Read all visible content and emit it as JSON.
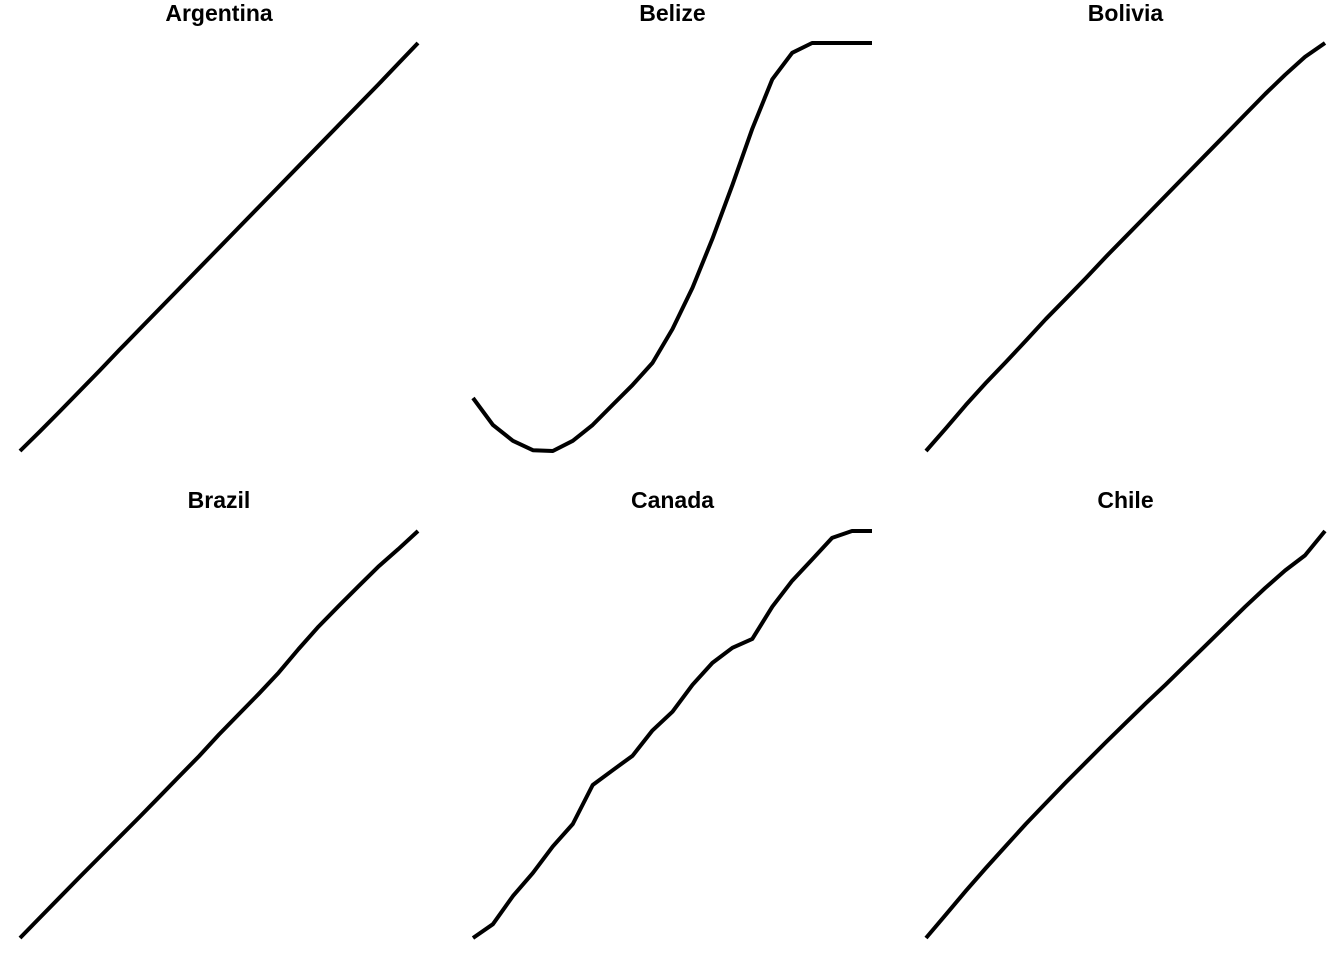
{
  "chart_data": [
    {
      "type": "line",
      "title": "Argentina",
      "axes_visible": false,
      "grid": false,
      "legend": "none",
      "color": "#000000",
      "x": [
        0,
        1,
        2,
        3,
        4,
        5,
        6,
        7,
        8,
        9,
        10,
        11,
        12,
        13,
        14,
        15,
        16,
        17,
        18,
        19,
        20
      ],
      "y": [
        0.0,
        0.048,
        0.097,
        0.147,
        0.197,
        0.248,
        0.298,
        0.348,
        0.398,
        0.448,
        0.498,
        0.548,
        0.598,
        0.648,
        0.698,
        0.748,
        0.798,
        0.848,
        0.898,
        0.949,
        1.0
      ]
    },
    {
      "type": "line",
      "title": "Belize",
      "axes_visible": false,
      "grid": false,
      "legend": "none",
      "color": "#000000",
      "x": [
        0,
        1,
        2,
        3,
        4,
        5,
        6,
        7,
        8,
        9,
        10,
        11,
        12,
        13,
        14,
        15,
        16,
        17,
        18,
        19,
        20
      ],
      "y": [
        0.13,
        0.064,
        0.025,
        0.002,
        0.0,
        0.025,
        0.064,
        0.113,
        0.162,
        0.216,
        0.299,
        0.4,
        0.52,
        0.652,
        0.79,
        0.911,
        0.976,
        1.0,
        1.0,
        1.0,
        1.0
      ]
    },
    {
      "type": "line",
      "title": "Bolivia",
      "axes_visible": false,
      "grid": false,
      "legend": "none",
      "color": "#000000",
      "x": [
        0,
        1,
        2,
        3,
        4,
        5,
        6,
        7,
        8,
        9,
        10,
        11,
        12,
        13,
        14,
        15,
        16,
        17,
        18,
        19,
        20
      ],
      "y": [
        0.0,
        0.056,
        0.113,
        0.167,
        0.218,
        0.27,
        0.323,
        0.373,
        0.423,
        0.475,
        0.525,
        0.575,
        0.625,
        0.675,
        0.725,
        0.775,
        0.825,
        0.875,
        0.922,
        0.966,
        1.0
      ]
    },
    {
      "type": "line",
      "title": "Brazil",
      "axes_visible": false,
      "grid": false,
      "legend": "none",
      "color": "#000000",
      "x": [
        0,
        1,
        2,
        3,
        4,
        5,
        6,
        7,
        8,
        9,
        10,
        11,
        12,
        13,
        14,
        15,
        16,
        17,
        18,
        19,
        20
      ],
      "y": [
        0.0,
        0.05,
        0.1,
        0.15,
        0.199,
        0.248,
        0.297,
        0.347,
        0.397,
        0.447,
        0.5,
        0.55,
        0.6,
        0.652,
        0.71,
        0.765,
        0.815,
        0.864,
        0.912,
        0.955,
        1.0
      ]
    },
    {
      "type": "line",
      "title": "Canada",
      "axes_visible": false,
      "grid": false,
      "legend": "none",
      "color": "#000000",
      "x": [
        0,
        1,
        2,
        3,
        4,
        5,
        6,
        7,
        8,
        9,
        10,
        11,
        12,
        13,
        14,
        15,
        16,
        17,
        18,
        19,
        20
      ],
      "y": [
        0.0,
        0.034,
        0.103,
        0.16,
        0.225,
        0.28,
        0.376,
        0.412,
        0.448,
        0.51,
        0.556,
        0.622,
        0.676,
        0.713,
        0.735,
        0.814,
        0.878,
        0.93,
        0.983,
        1.0,
        1.0
      ]
    },
    {
      "type": "line",
      "title": "Chile",
      "axes_visible": false,
      "grid": false,
      "legend": "none",
      "color": "#000000",
      "x": [
        0,
        1,
        2,
        3,
        4,
        5,
        6,
        7,
        8,
        9,
        10,
        11,
        12,
        13,
        14,
        15,
        16,
        17,
        18,
        19,
        20
      ],
      "y": [
        0.0,
        0.058,
        0.116,
        0.172,
        0.226,
        0.28,
        0.331,
        0.382,
        0.431,
        0.48,
        0.528,
        0.576,
        0.622,
        0.67,
        0.718,
        0.766,
        0.814,
        0.86,
        0.903,
        0.94,
        1.0
      ]
    }
  ]
}
